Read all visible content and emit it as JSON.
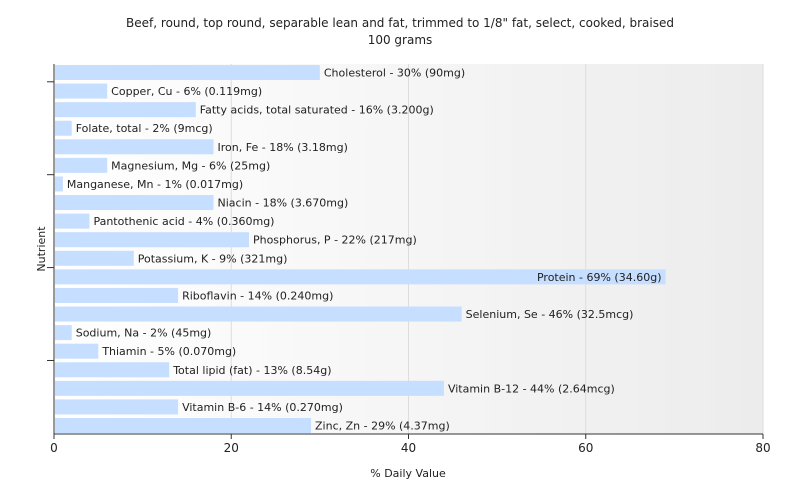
{
  "chart_data": {
    "type": "bar",
    "orientation": "horizontal",
    "title": "Beef, round, top round, separable lean and fat, trimmed to 1/8\" fat, select, cooked, braised",
    "subtitle": "100 grams",
    "xlabel": "% Daily Value",
    "ylabel": "Nutrient",
    "xlim": [
      0,
      80
    ],
    "xticks": [
      0,
      20,
      40,
      60,
      80
    ],
    "grid": true,
    "bar_color": "#c6deff",
    "categories": [
      "Cholesterol",
      "Copper, Cu",
      "Fatty acids, total saturated",
      "Folate, total",
      "Iron, Fe",
      "Magnesium, Mg",
      "Manganese, Mn",
      "Niacin",
      "Pantothenic acid",
      "Phosphorus, P",
      "Potassium, K",
      "Protein",
      "Riboflavin",
      "Selenium, Se",
      "Sodium, Na",
      "Thiamin",
      "Total lipid (fat)",
      "Vitamin B-12",
      "Vitamin B-6",
      "Zinc, Zn"
    ],
    "values": [
      30,
      6,
      16,
      2,
      18,
      6,
      1,
      18,
      4,
      22,
      9,
      69,
      14,
      46,
      2,
      5,
      13,
      44,
      14,
      29
    ],
    "labels": [
      "Cholesterol - 30% (90mg)",
      "Copper, Cu - 6% (0.119mg)",
      "Fatty acids, total saturated - 16% (3.200g)",
      "Folate, total - 2% (9mcg)",
      "Iron, Fe - 18% (3.18mg)",
      "Magnesium, Mg - 6% (25mg)",
      "Manganese, Mn - 1% (0.017mg)",
      "Niacin - 18% (3.670mg)",
      "Pantothenic acid - 4% (0.360mg)",
      "Phosphorus, P - 22% (217mg)",
      "Potassium, K - 9% (321mg)",
      "Protein - 69% (34.60g)",
      "Riboflavin - 14% (0.240mg)",
      "Selenium, Se - 46% (32.5mcg)",
      "Sodium, Na - 2% (45mg)",
      "Thiamin - 5% (0.070mg)",
      "Total lipid (fat) - 13% (8.54g)",
      "Vitamin B-12 - 44% (2.64mcg)",
      "Vitamin B-6 - 14% (0.270mg)",
      "Zinc, Zn - 29% (4.37mg)"
    ]
  }
}
